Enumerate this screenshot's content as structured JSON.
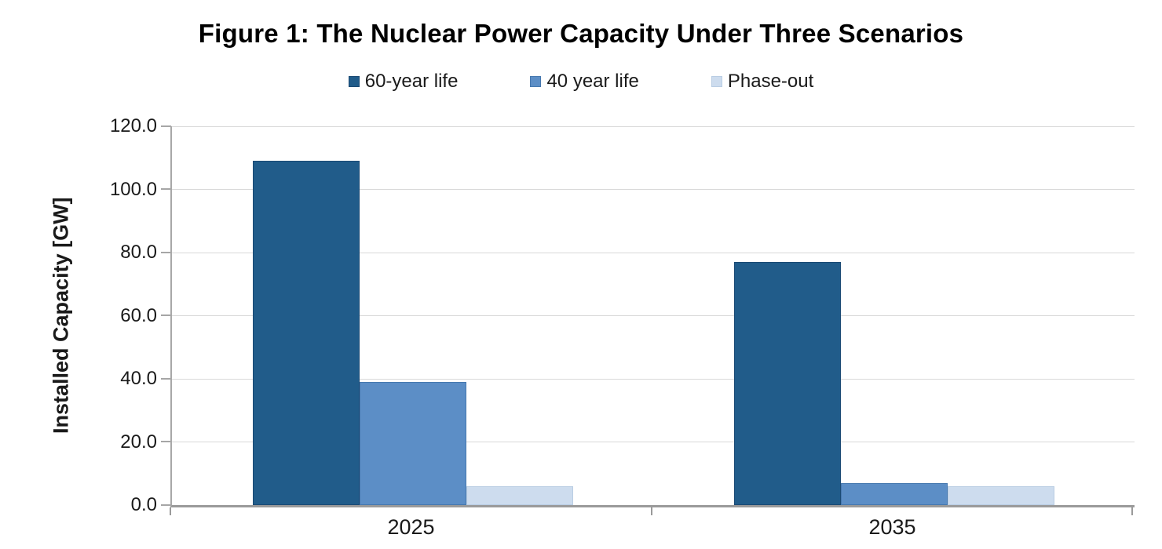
{
  "chart_data": {
    "type": "bar",
    "title": "Figure 1: The Nuclear Power Capacity Under Three Scenarios",
    "categories": [
      "2025",
      "2035"
    ],
    "series": [
      {
        "name": "60-year life",
        "values": [
          109,
          77
        ],
        "color": "#215C8A",
        "border_color": "#1B4A74"
      },
      {
        "name": "40 year life",
        "values": [
          39,
          7
        ],
        "color": "#5C8EC6",
        "border_color": "#4678AF"
      },
      {
        "name": "Phase-out",
        "values": [
          6,
          6
        ],
        "color": "#CDDCEE",
        "border_color": "#B9CDE3"
      }
    ],
    "xlabel": "",
    "ylabel": "Installed Capacity [GW]",
    "ylim": [
      0,
      120
    ],
    "ytick_step": 20,
    "yticks": [
      "120.0",
      "100.0",
      "80.0",
      "60.0",
      "40.0",
      "20.0",
      "0.0"
    ],
    "grid": true,
    "legend_position": "top",
    "colors": {
      "gridline": "#D9D9D9",
      "axis": "#9A9A9A",
      "text": "#1A1A1A",
      "title": "#000000"
    }
  }
}
